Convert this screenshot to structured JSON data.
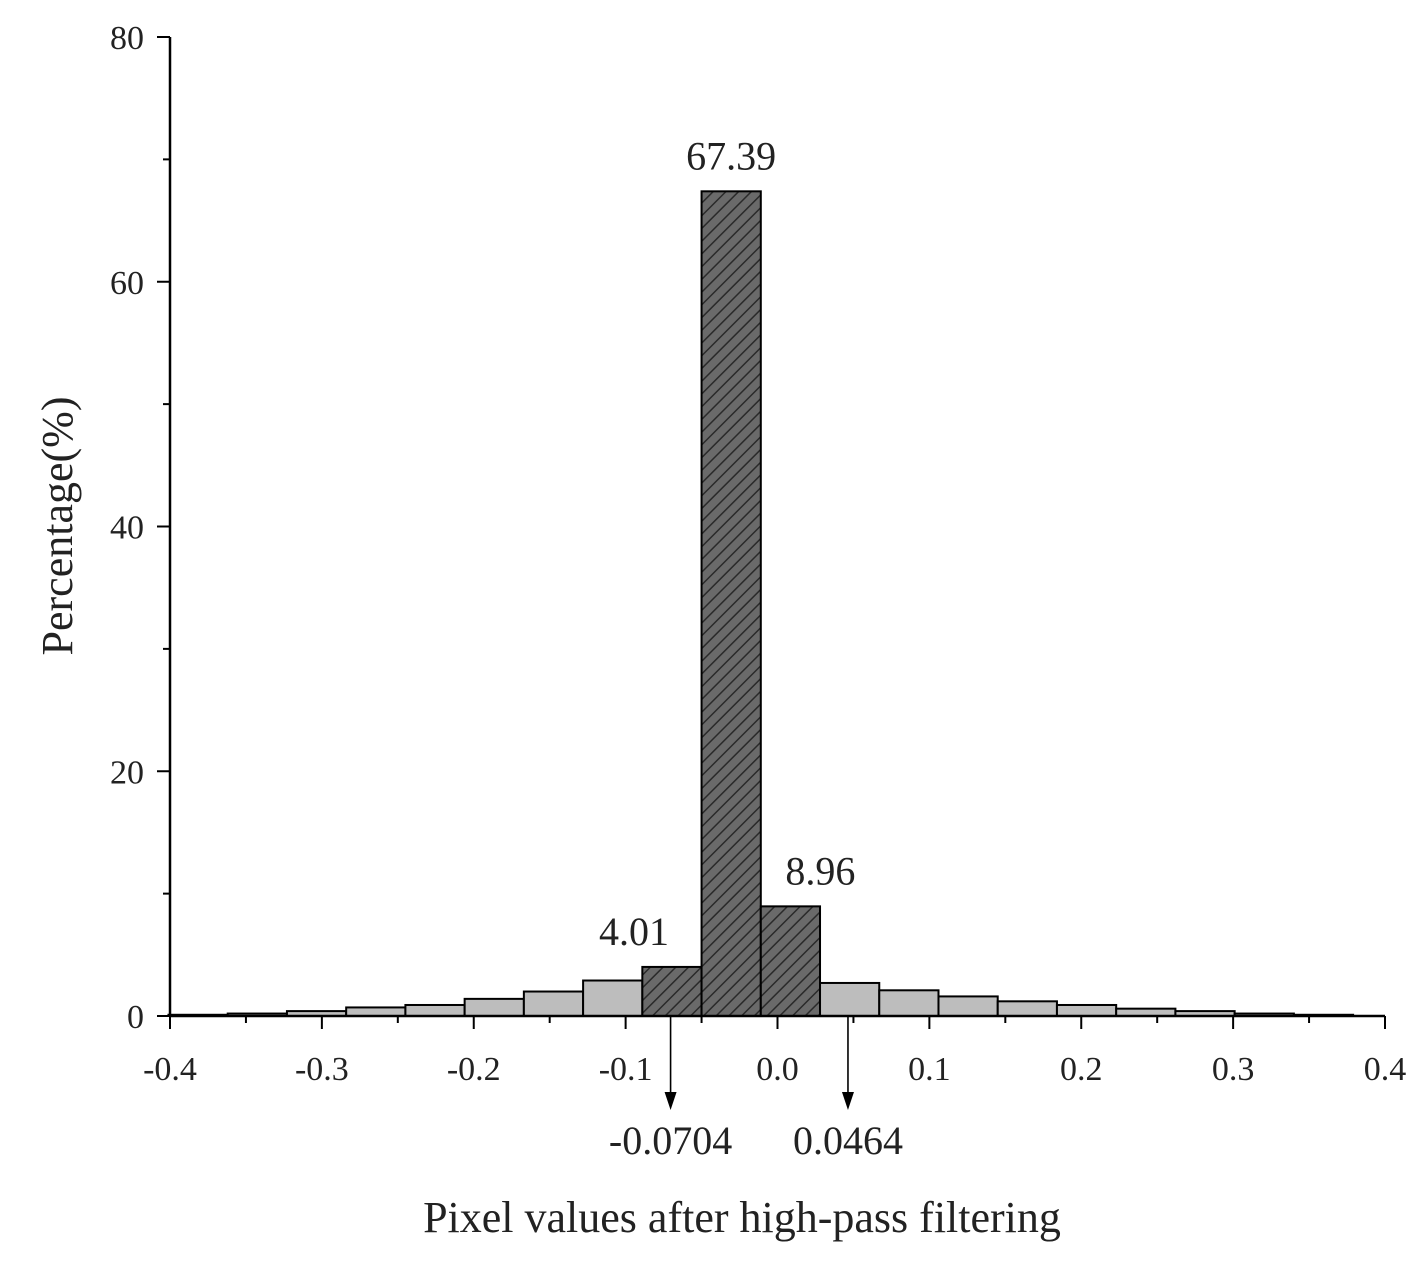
{
  "chart_data": {
    "type": "bar",
    "xlabel": "Pixel values after high-pass filtering",
    "ylabel": "Percentage(%)",
    "xlim": [
      -0.4,
      0.4
    ],
    "ylim": [
      0,
      80
    ],
    "x_ticks": [
      "-0.4",
      "-0.3",
      "-0.2",
      "-0.1",
      "0.0",
      "0.1",
      "0.2",
      "0.3",
      "0.4"
    ],
    "y_ticks": [
      "0",
      "20",
      "40",
      "60",
      "80"
    ],
    "bin_width": 0.039,
    "bins": [
      {
        "left": -0.401,
        "value": 0.1,
        "style": "light"
      },
      {
        "left": -0.362,
        "value": 0.2,
        "style": "light"
      },
      {
        "left": -0.323,
        "value": 0.4,
        "style": "light"
      },
      {
        "left": -0.284,
        "value": 0.7,
        "style": "light"
      },
      {
        "left": -0.245,
        "value": 0.9,
        "style": "light"
      },
      {
        "left": -0.206,
        "value": 1.4,
        "style": "light"
      },
      {
        "left": -0.167,
        "value": 2.0,
        "style": "light"
      },
      {
        "left": -0.128,
        "value": 2.9,
        "style": "light"
      },
      {
        "left": -0.089,
        "value": 4.01,
        "style": "dark"
      },
      {
        "left": -0.05,
        "value": 67.39,
        "style": "dark"
      },
      {
        "left": -0.011,
        "value": 8.96,
        "style": "dark"
      },
      {
        "left": 0.028,
        "value": 2.7,
        "style": "light"
      },
      {
        "left": 0.067,
        "value": 2.1,
        "style": "light"
      },
      {
        "left": 0.106,
        "value": 1.6,
        "style": "light"
      },
      {
        "left": 0.145,
        "value": 1.2,
        "style": "light"
      },
      {
        "left": 0.184,
        "value": 0.9,
        "style": "light"
      },
      {
        "left": 0.223,
        "value": 0.6,
        "style": "light"
      },
      {
        "left": 0.262,
        "value": 0.4,
        "style": "light"
      },
      {
        "left": 0.301,
        "value": 0.2,
        "style": "light"
      },
      {
        "left": 0.34,
        "value": 0.1,
        "style": "light"
      }
    ],
    "data_labels": [
      {
        "bin": 8,
        "text": "4.01"
      },
      {
        "bin": 9,
        "text": "67.39"
      },
      {
        "bin": 10,
        "text": "8.96"
      }
    ],
    "markers": [
      {
        "x": -0.0704,
        "text": "-0.0704"
      },
      {
        "x": 0.0464,
        "text": "0.0464"
      }
    ],
    "colors": {
      "dark_fill": "#6a6a6a",
      "light_fill": "#bdbdbd",
      "hatch": "#2a2a2a"
    }
  }
}
